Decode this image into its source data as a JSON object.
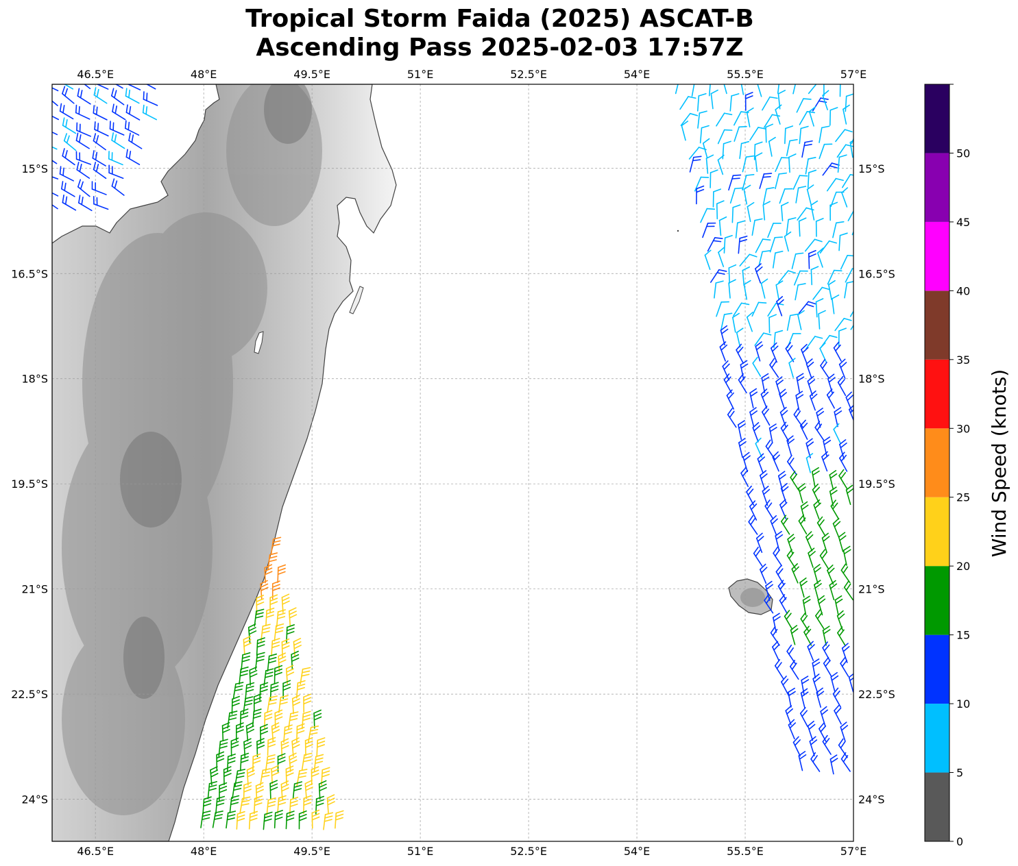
{
  "title": {
    "line1": "Tropical Storm Faida (2025) ASCAT-B",
    "line2": "Ascending Pass 2025-02-03 17:57Z"
  },
  "map": {
    "lon_range": [
      45.9,
      57.0
    ],
    "lat_range": [
      -24.6,
      -13.8
    ],
    "lon_ticks": [
      "46.5°E",
      "48°E",
      "49.5°E",
      "51°E",
      "52.5°E",
      "54°E",
      "55.5°E",
      "57°E"
    ],
    "lat_ticks": [
      "15°S",
      "16.5°S",
      "18°S",
      "19.5°S",
      "21°S",
      "22.5°S",
      "24°S"
    ],
    "gridlines": true,
    "land": [
      "Madagascar",
      "Réunion"
    ]
  },
  "colorbar": {
    "label": "Wind Speed (knots)",
    "ticks": [
      "0",
      "5",
      "10",
      "15",
      "20",
      "25",
      "30",
      "35",
      "40",
      "45",
      "50"
    ],
    "bins": [
      {
        "min": 0,
        "max": 5,
        "color": "#595959"
      },
      {
        "min": 5,
        "max": 10,
        "color": "#00bfff"
      },
      {
        "min": 10,
        "max": 15,
        "color": "#0033ff"
      },
      {
        "min": 15,
        "max": 20,
        "color": "#009900"
      },
      {
        "min": 20,
        "max": 25,
        "color": "#ffd11a"
      },
      {
        "min": 25,
        "max": 30,
        "color": "#ff8c1a"
      },
      {
        "min": 30,
        "max": 35,
        "color": "#ff1111"
      },
      {
        "min": 35,
        "max": 40,
        "color": "#7f3a2a"
      },
      {
        "min": 40,
        "max": 45,
        "color": "#ff00ff"
      },
      {
        "min": 45,
        "max": 50,
        "color": "#8800b0"
      },
      {
        "min": 50,
        "max": 55,
        "color": "#2a0060"
      }
    ]
  }
}
